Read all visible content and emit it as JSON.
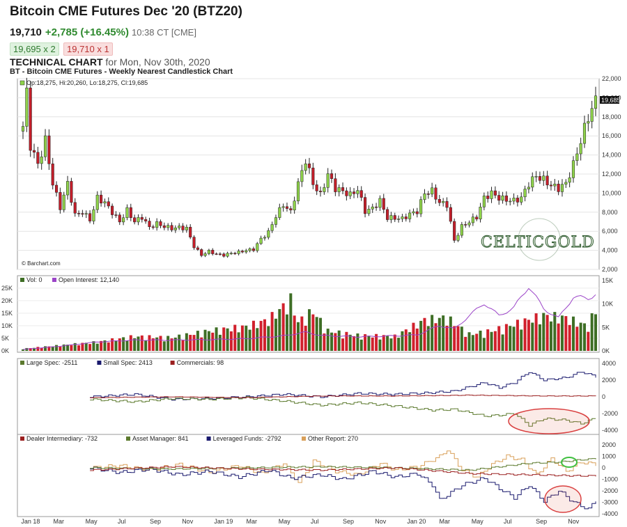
{
  "header": {
    "title": "Bitcoin CME Futures Dec '20 (BTZ20)",
    "last": "19,710",
    "change": "+2,785 (+16.45%)",
    "time": "10:38 CT [CME]",
    "bid": "19,695 x 2",
    "ask": "19,710 x 1",
    "tech_label": "TECHNICAL CHART",
    "tech_date": "for Mon, Nov 30th, 2020",
    "subtitle": "BT - Bitcoin CME Futures - Weekly Nearest Candlestick Chart"
  },
  "colors": {
    "up": "#8fd34a",
    "down": "#c41e2a",
    "vol_up": "#3e6e25",
    "vol_down": "#d1202c",
    "oi": "#9b44c8",
    "large_spec": "#5c7a2e",
    "small_spec": "#1a1a6e",
    "commercials": "#9b2020",
    "dealer": "#9b2020",
    "asset_mgr": "#5c7a2e",
    "lev_funds": "#1a1a6e",
    "other": "#d9a05a",
    "highlight": "#d94040",
    "highlight_green": "#40c040"
  },
  "chart_data": [
    {
      "type": "candlestick",
      "panel": "price",
      "legend": "Op:18,275, Hi:20,260, Lo:18,275, Cl:19,685",
      "last_label": "19,685",
      "watermark": "© Barchart.com",
      "logo_text": "CELTICGOLD",
      "y_ticks": [
        "22,000",
        "20,000",
        "18,000",
        "16,000",
        "14,000",
        "12,000",
        "10,000",
        "8,000",
        "6,000",
        "4,000",
        "2,000"
      ],
      "ylim": [
        2000,
        22000
      ],
      "x_ticks": [
        "Jan 18",
        "Mar",
        "May",
        "Jul",
        "Sep",
        "Nov",
        "Jan 19",
        "Mar",
        "May",
        "Jul",
        "Sep",
        "Nov",
        "Jan 20",
        "Mar",
        "May",
        "Jul",
        "Sep",
        "Nov"
      ],
      "anchors": [
        [
          0,
          17000
        ],
        [
          1,
          20500
        ],
        [
          2,
          15000
        ],
        [
          4,
          13000
        ],
        [
          6,
          15500
        ],
        [
          8,
          11000
        ],
        [
          10,
          8500
        ],
        [
          12,
          11000
        ],
        [
          14,
          7700
        ],
        [
          16,
          8000
        ],
        [
          18,
          7200
        ],
        [
          20,
          9500
        ],
        [
          22,
          9000
        ],
        [
          24,
          8000
        ],
        [
          26,
          7000
        ],
        [
          28,
          8200
        ],
        [
          30,
          7000
        ],
        [
          32,
          7500
        ],
        [
          34,
          6400
        ],
        [
          36,
          6800
        ],
        [
          38,
          6500
        ],
        [
          40,
          6300
        ],
        [
          42,
          6400
        ],
        [
          44,
          6300
        ],
        [
          46,
          4400
        ],
        [
          48,
          3500
        ],
        [
          50,
          3900
        ],
        [
          52,
          3600
        ],
        [
          54,
          3500
        ],
        [
          56,
          3700
        ],
        [
          58,
          3800
        ],
        [
          60,
          4000
        ],
        [
          62,
          4100
        ],
        [
          64,
          5200
        ],
        [
          66,
          5900
        ],
        [
          68,
          7600
        ],
        [
          70,
          8800
        ],
        [
          72,
          8000
        ],
        [
          74,
          11000
        ],
        [
          76,
          13500
        ],
        [
          78,
          11000
        ],
        [
          80,
          9800
        ],
        [
          82,
          12000
        ],
        [
          84,
          10500
        ],
        [
          86,
          10200
        ],
        [
          88,
          9800
        ],
        [
          90,
          10400
        ],
        [
          92,
          8100
        ],
        [
          94,
          8400
        ],
        [
          96,
          9200
        ],
        [
          98,
          7400
        ],
        [
          100,
          7400
        ],
        [
          102,
          7300
        ],
        [
          104,
          7800
        ],
        [
          106,
          8100
        ],
        [
          108,
          10000
        ],
        [
          110,
          10200
        ],
        [
          112,
          9000
        ],
        [
          114,
          8800
        ],
        [
          116,
          5000
        ],
        [
          118,
          6500
        ],
        [
          120,
          7000
        ],
        [
          122,
          7500
        ],
        [
          124,
          9500
        ],
        [
          126,
          10000
        ],
        [
          128,
          9500
        ],
        [
          130,
          9300
        ],
        [
          132,
          9200
        ],
        [
          134,
          9500
        ],
        [
          136,
          11000
        ],
        [
          138,
          11800
        ],
        [
          140,
          11400
        ],
        [
          142,
          10800
        ],
        [
          144,
          10500
        ],
        [
          146,
          11000
        ],
        [
          148,
          13000
        ],
        [
          150,
          15500
        ],
        [
          152,
          18000
        ],
        [
          154,
          19700
        ]
      ]
    },
    {
      "type": "bar+line",
      "panel": "volume",
      "legend_vol": "Vol: 0",
      "legend_oi": "Open Interest: 12,140",
      "y_ticks_left": [
        "25K",
        "20K",
        "15K",
        "10K",
        "5K",
        "0K"
      ],
      "y_ticks_right": [
        "15K",
        "10K",
        "5K",
        "0K"
      ],
      "vol_anchors": [
        [
          0,
          1000
        ],
        [
          10,
          2500
        ],
        [
          20,
          4000
        ],
        [
          30,
          6500
        ],
        [
          40,
          6000
        ],
        [
          50,
          9000
        ],
        [
          60,
          11000
        ],
        [
          66,
          14000
        ],
        [
          72,
          23000
        ],
        [
          74,
          13000
        ],
        [
          78,
          18000
        ],
        [
          82,
          9000
        ],
        [
          90,
          7000
        ],
        [
          100,
          6500
        ],
        [
          108,
          14000
        ],
        [
          114,
          15000
        ],
        [
          120,
          7500
        ],
        [
          126,
          9000
        ],
        [
          132,
          12000
        ],
        [
          140,
          16000
        ],
        [
          146,
          15000
        ],
        [
          152,
          11000
        ],
        [
          154,
          19000
        ]
      ],
      "oi_anchors": [
        [
          0,
          300
        ],
        [
          10,
          1000
        ],
        [
          20,
          1900
        ],
        [
          30,
          2300
        ],
        [
          40,
          2300
        ],
        [
          50,
          2400
        ],
        [
          60,
          2600
        ],
        [
          70,
          3200
        ],
        [
          76,
          4000
        ],
        [
          80,
          3300
        ],
        [
          90,
          3000
        ],
        [
          100,
          3200
        ],
        [
          106,
          3400
        ],
        [
          112,
          5400
        ],
        [
          116,
          4700
        ],
        [
          124,
          10200
        ],
        [
          128,
          7500
        ],
        [
          132,
          9200
        ],
        [
          136,
          13800
        ],
        [
          140,
          9000
        ],
        [
          144,
          7000
        ],
        [
          148,
          11500
        ],
        [
          152,
          11200
        ],
        [
          154,
          12100
        ]
      ]
    },
    {
      "type": "step-line",
      "panel": "cot_spec",
      "legend": [
        "Large Spec: -2511",
        "Small Spec: 2413",
        "Commercials: 98"
      ],
      "y_ticks": [
        "4000",
        "2000",
        "0",
        "-2000",
        "-4000"
      ],
      "small_spec_anchors": [
        [
          18,
          0
        ],
        [
          30,
          300
        ],
        [
          40,
          -300
        ],
        [
          50,
          -200
        ],
        [
          60,
          0
        ],
        [
          70,
          300
        ],
        [
          80,
          0
        ],
        [
          90,
          400
        ],
        [
          100,
          300
        ],
        [
          110,
          500
        ],
        [
          116,
          700
        ],
        [
          124,
          1700
        ],
        [
          128,
          1100
        ],
        [
          132,
          1700
        ],
        [
          136,
          3000
        ],
        [
          140,
          2000
        ],
        [
          146,
          2300
        ],
        [
          150,
          3000
        ],
        [
          154,
          2400
        ]
      ],
      "large_spec_anchors": [
        [
          18,
          -300
        ],
        [
          30,
          -600
        ],
        [
          40,
          -200
        ],
        [
          50,
          -300
        ],
        [
          60,
          -100
        ],
        [
          70,
          -500
        ],
        [
          80,
          -1000
        ],
        [
          90,
          -700
        ],
        [
          100,
          -1100
        ],
        [
          110,
          -1600
        ],
        [
          116,
          -1500
        ],
        [
          124,
          -2300
        ],
        [
          128,
          -2200
        ],
        [
          132,
          -2000
        ],
        [
          136,
          -3400
        ],
        [
          140,
          -2600
        ],
        [
          146,
          -2800
        ],
        [
          150,
          -3200
        ],
        [
          154,
          -2500
        ]
      ],
      "commercials_anchors": [
        [
          18,
          -100
        ],
        [
          40,
          0
        ],
        [
          60,
          -100
        ],
        [
          80,
          100
        ],
        [
          100,
          100
        ],
        [
          120,
          200
        ],
        [
          140,
          100
        ],
        [
          154,
          100
        ]
      ]
    },
    {
      "type": "step-line",
      "panel": "cot_tff",
      "legend": [
        "Dealer Intermediary: -732",
        "Asset Manager: 841",
        "Leveraged Funds: -2792",
        "Other Report: 270"
      ],
      "y_ticks": [
        "2000",
        "1000",
        "0",
        "-1000",
        "-2000",
        "-3000",
        "-4000"
      ],
      "lev_anchors": [
        [
          18,
          0
        ],
        [
          26,
          -400
        ],
        [
          34,
          -100
        ],
        [
          42,
          -600
        ],
        [
          50,
          -300
        ],
        [
          58,
          -800
        ],
        [
          66,
          -200
        ],
        [
          72,
          -900
        ],
        [
          80,
          -600
        ],
        [
          86,
          -1000
        ],
        [
          94,
          -300
        ],
        [
          100,
          -800
        ],
        [
          106,
          -500
        ],
        [
          110,
          -1500
        ],
        [
          112,
          -2800
        ],
        [
          118,
          -1500
        ],
        [
          124,
          -900
        ],
        [
          128,
          -1800
        ],
        [
          132,
          -2600
        ],
        [
          136,
          -1500
        ],
        [
          140,
          -2900
        ],
        [
          144,
          -2000
        ],
        [
          148,
          -3000
        ],
        [
          152,
          -3600
        ],
        [
          154,
          -2800
        ]
      ],
      "other_anchors": [
        [
          18,
          0
        ],
        [
          26,
          200
        ],
        [
          34,
          -200
        ],
        [
          42,
          300
        ],
        [
          50,
          -400
        ],
        [
          58,
          200
        ],
        [
          64,
          -500
        ],
        [
          70,
          400
        ],
        [
          74,
          -1300
        ],
        [
          78,
          600
        ],
        [
          84,
          -300
        ],
        [
          90,
          -600
        ],
        [
          96,
          400
        ],
        [
          100,
          -200
        ],
        [
          106,
          100
        ],
        [
          112,
          1000
        ],
        [
          114,
          1600
        ],
        [
          118,
          -200
        ],
        [
          122,
          -800
        ],
        [
          126,
          300
        ],
        [
          130,
          1000
        ],
        [
          134,
          700
        ],
        [
          138,
          -600
        ],
        [
          142,
          800
        ],
        [
          146,
          -300
        ],
        [
          150,
          500
        ],
        [
          154,
          300
        ]
      ],
      "asset_anchors": [
        [
          18,
          0
        ],
        [
          40,
          -100
        ],
        [
          60,
          0
        ],
        [
          80,
          100
        ],
        [
          100,
          0
        ],
        [
          120,
          -200
        ],
        [
          136,
          400
        ],
        [
          144,
          500
        ],
        [
          150,
          700
        ],
        [
          154,
          800
        ]
      ],
      "dealer_anchors": [
        [
          18,
          -200
        ],
        [
          40,
          100
        ],
        [
          60,
          -100
        ],
        [
          80,
          -200
        ],
        [
          100,
          0
        ],
        [
          112,
          -300
        ],
        [
          120,
          -500
        ],
        [
          136,
          -600
        ],
        [
          150,
          -700
        ],
        [
          154,
          -700
        ]
      ]
    }
  ]
}
